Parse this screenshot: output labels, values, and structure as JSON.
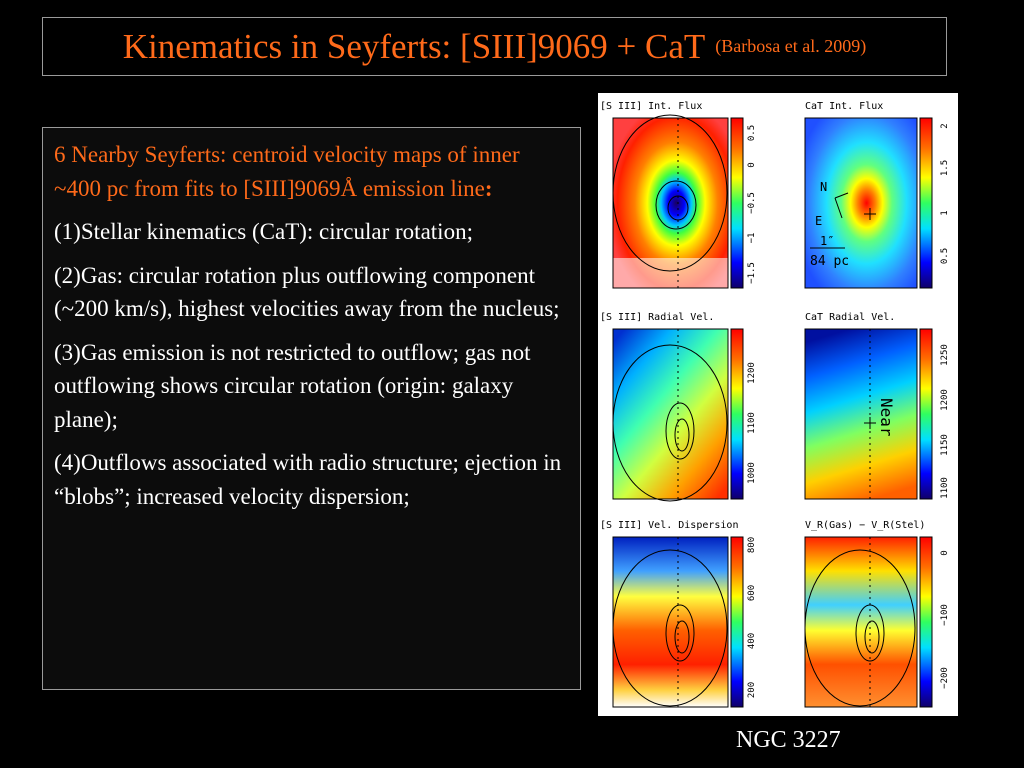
{
  "slide": {
    "title": "Kinematics in Seyferts: [SIII]9069 + CaT",
    "title_citation": "(Barbosa et al. 2009)",
    "intro_text": "6 Nearby Seyferts: centroid velocity maps of inner ~400 pc  from fits to [SIII]9069Å emission line",
    "intro_colon": ":",
    "points": [
      "(1)Stellar kinematics (CaT): circular rotation;",
      "(2)Gas: circular rotation plus outflowing component (~200 km/s), highest velocities away from the nucleus;",
      "(3)Gas emission is not restricted to outflow; gas not outflowing shows circular rotation (origin: galaxy plane);",
      "(4)Outflows associated with radio structure; ejection in “blobs”; increased velocity dispersion;"
    ],
    "caption": "NGC 3227",
    "accent_color": "#ff6a1a"
  },
  "figure": {
    "panels": [
      {
        "label": "[S III] Int. Flux",
        "ticks": [
          "0.5",
          "0",
          "−0.5",
          "−1",
          "−1.5"
        ]
      },
      {
        "label": "CaT Int. Flux",
        "ticks": [
          "2",
          "1.5",
          "1",
          "0.5"
        ],
        "annotations": [
          "N",
          "E",
          "1″",
          "84 pc"
        ]
      },
      {
        "label": "[S III] Radial Vel.",
        "ticks": [
          "1200",
          "1100",
          "1000"
        ]
      },
      {
        "label": "CaT Radial Vel.",
        "ticks": [
          "1250",
          "1200",
          "1150",
          "1100"
        ],
        "annotations": [
          "Near"
        ]
      },
      {
        "label": "[S III] Vel. Dispersion",
        "ticks": [
          "800",
          "600",
          "400",
          "200"
        ]
      },
      {
        "label": "V_R(Gas) − V_R(Stel)",
        "ticks": [
          "0",
          "−100",
          "−200"
        ]
      }
    ]
  }
}
